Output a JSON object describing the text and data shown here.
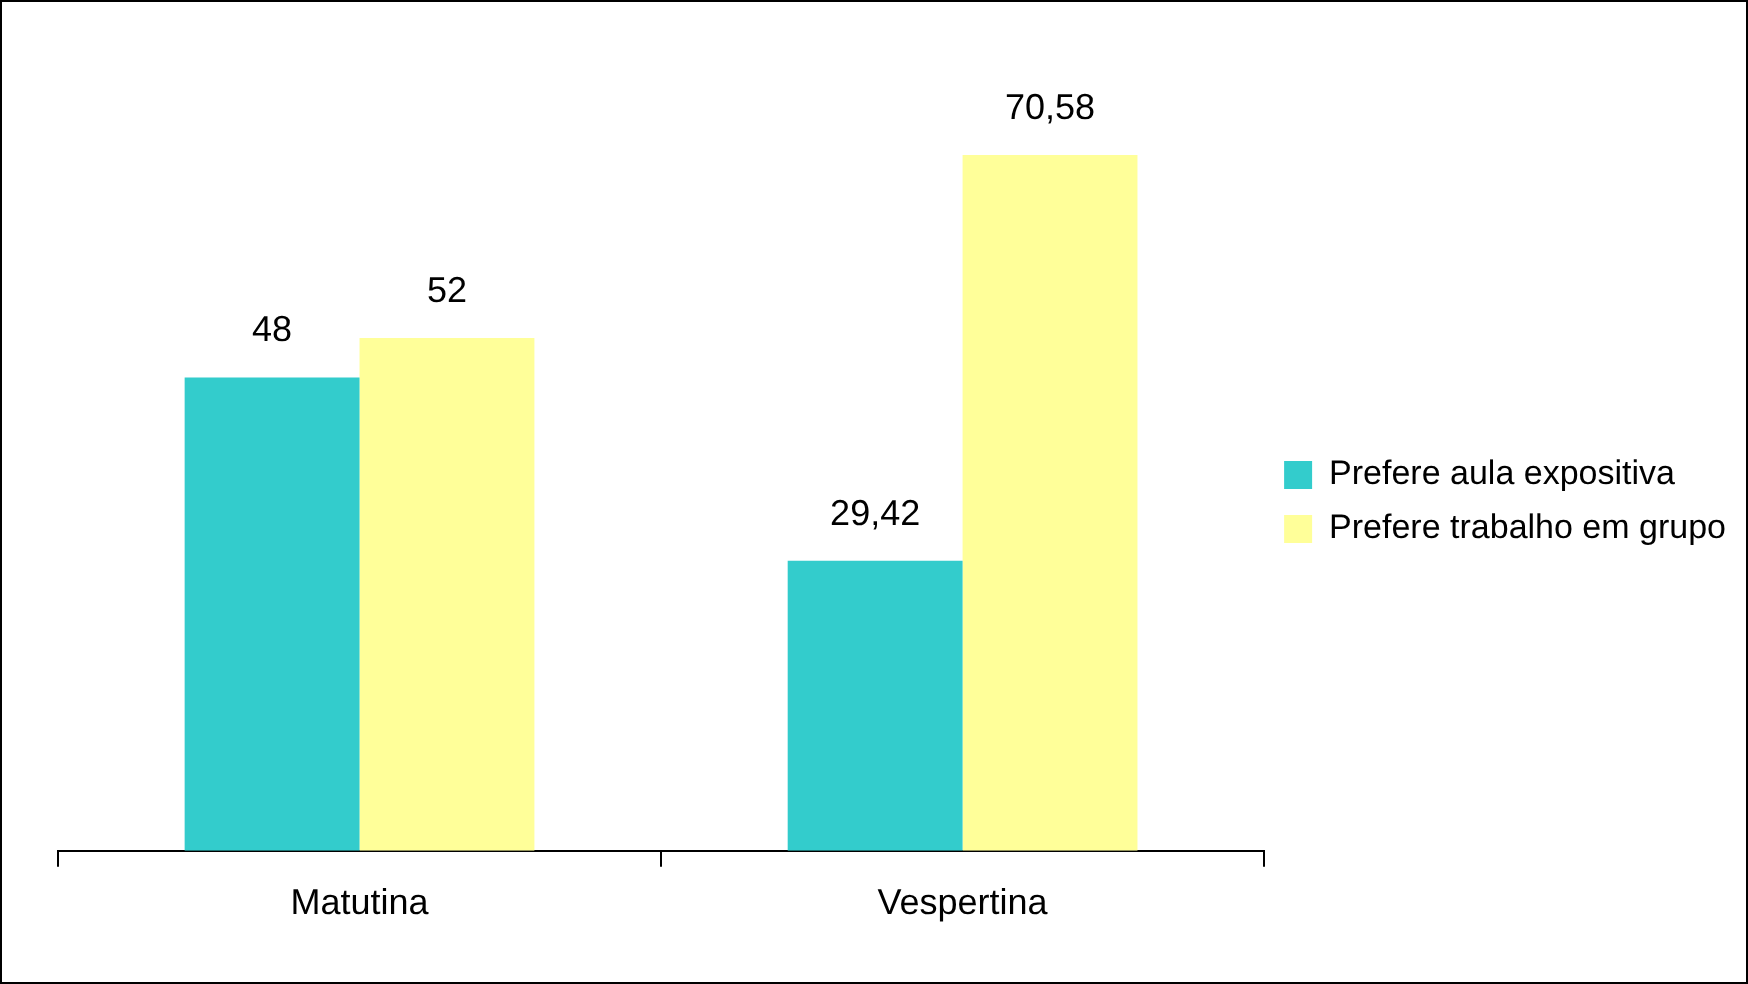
{
  "chart_data": {
    "type": "bar",
    "categories": [
      "Matutina",
      "Vespertina"
    ],
    "series": [
      {
        "name": "Prefere aula expositiva",
        "color": "#33cccc",
        "values": [
          48,
          29.42
        ],
        "value_labels": [
          "48",
          "29,42"
        ]
      },
      {
        "name": "Prefere trabalho em grupo",
        "color": "#ffff99",
        "values": [
          52,
          70.58
        ],
        "value_labels": [
          "52",
          "70,58"
        ]
      }
    ],
    "legend": "right"
  }
}
